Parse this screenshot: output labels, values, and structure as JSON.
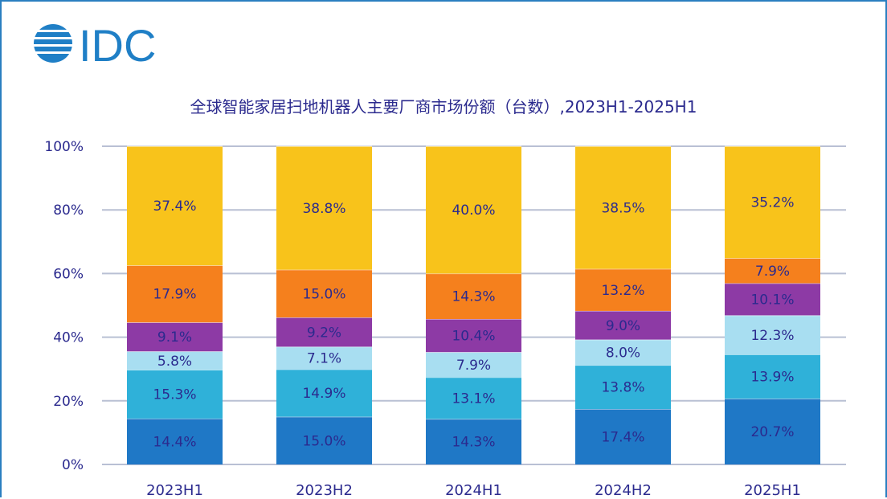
{
  "logo": {
    "text": "IDC"
  },
  "chart_data": {
    "type": "bar",
    "stacked": true,
    "title": "全球智能家居扫地机器人主要厂商市场份额（台数）,2023H1-2025H1",
    "categories": [
      "2023H1",
      "2023H2",
      "2024H1",
      "2024H2",
      "2025H1"
    ],
    "ylim": [
      0,
      100
    ],
    "yticks": [
      "0%",
      "20%",
      "40%",
      "60%",
      "80%",
      "100%"
    ],
    "grid": true,
    "series": [
      {
        "values": [
          14.4,
          15.0,
          14.3,
          17.4,
          20.7
        ],
        "labels": [
          "14.4%",
          "15.0%",
          "14.3%",
          "17.4%",
          "20.7%"
        ],
        "color": "#1f78c6"
      },
      {
        "values": [
          15.3,
          14.9,
          13.1,
          13.8,
          13.9
        ],
        "labels": [
          "15.3%",
          "14.9%",
          "13.1%",
          "13.8%",
          "13.9%"
        ],
        "color": "#2fb1d9"
      },
      {
        "values": [
          5.8,
          7.1,
          7.9,
          8.0,
          12.3
        ],
        "labels": [
          "5.8%",
          "7.1%",
          "7.9%",
          "8.0%",
          "12.3%"
        ],
        "color": "#a8def1"
      },
      {
        "values": [
          9.1,
          9.2,
          10.4,
          9.0,
          10.1
        ],
        "labels": [
          "9.1%",
          "9.2%",
          "10.4%",
          "9.0%",
          "10.1%"
        ],
        "color": "#8d3aa5"
      },
      {
        "values": [
          17.9,
          15.0,
          14.3,
          13.2,
          7.9
        ],
        "labels": [
          "17.9%",
          "15.0%",
          "14.3%",
          "13.2%",
          "7.9%"
        ],
        "color": "#f5801d"
      },
      {
        "values": [
          37.4,
          38.8,
          40.0,
          38.5,
          35.2
        ],
        "labels": [
          "37.4%",
          "38.8%",
          "40.0%",
          "38.5%",
          "35.2%"
        ],
        "color": "#f8c31b"
      }
    ]
  }
}
